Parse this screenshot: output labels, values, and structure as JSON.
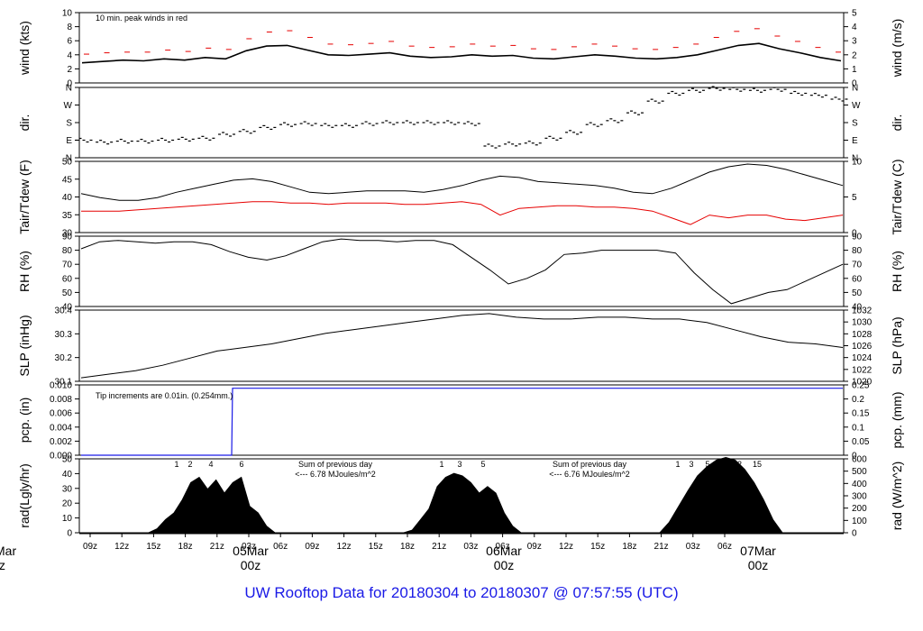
{
  "page_title": "UW Rooftop Data for 20180304  to  20180307 @ 07:57:55  (UTC)",
  "colors": {
    "wind_peak": "#e60000",
    "dewpoint": "#e60000",
    "precip": "#1a1ae6",
    "annot": "#9933cc",
    "day_marker": "#e60000",
    "title": "#1a1ae6",
    "trace": "#000000"
  },
  "x_axis": {
    "ticks": [
      "09z",
      "12z",
      "15z",
      "18z",
      "21z",
      "03z",
      "06z",
      "09z",
      "12z",
      "15z",
      "18z",
      "21z",
      "03z",
      "06z",
      "09z",
      "12z",
      "15z",
      "18z",
      "21z",
      "03z",
      "06z"
    ],
    "day_markers": [
      {
        "label": "05Mar",
        "sub": "00z"
      },
      {
        "label": "06Mar",
        "sub": "00z"
      },
      {
        "label": "07Mar",
        "sub": "00z"
      }
    ],
    "clipped_marker": {
      "label": "Mar",
      "sub": "z"
    }
  },
  "chart_data": [
    {
      "type": "line",
      "id": "wind",
      "ylabel": "wind (kts)",
      "ylabel_right": "wind (m/s)",
      "yticks": [
        "0",
        "2",
        "4",
        "6",
        "8",
        "10"
      ],
      "yticks_right": [
        "0",
        "1",
        "2",
        "3",
        "4",
        "5"
      ],
      "ylim": [
        0,
        10.5
      ],
      "annotation": "10 min. peak winds in red",
      "series": [
        {
          "values": [
            3.0,
            3.2,
            3.4,
            3.3,
            3.6,
            3.4,
            3.8,
            3.6,
            4.8,
            5.5,
            5.6,
            4.9,
            4.2,
            4.1,
            4.3,
            4.5,
            4.0,
            3.8,
            3.9,
            4.2,
            4.0,
            4.1,
            3.7,
            3.6,
            3.9,
            4.2,
            4.0,
            3.7,
            3.6,
            3.8,
            4.2,
            4.9,
            5.6,
            5.9,
            5.1,
            4.5,
            3.8,
            3.3
          ]
        },
        {
          "values": [
            4.3,
            4.5,
            4.6,
            4.6,
            4.9,
            4.7,
            5.2,
            5.0,
            6.6,
            7.6,
            7.8,
            6.8,
            5.8,
            5.7,
            5.9,
            6.2,
            5.5,
            5.3,
            5.4,
            5.8,
            5.5,
            5.6,
            5.1,
            5.0,
            5.4,
            5.8,
            5.5,
            5.1,
            5.0,
            5.3,
            5.8,
            6.8,
            7.7,
            8.1,
            7.0,
            6.2,
            5.3,
            4.6
          ]
        }
      ]
    },
    {
      "type": "scatter",
      "id": "dir",
      "ylabel": "dir.",
      "ylabel_right": "dir.",
      "yticks": [
        "N",
        "E",
        "S",
        "W",
        "N"
      ],
      "yticks_right": [
        "N",
        "E",
        "S",
        "W",
        "N"
      ],
      "ylim": [
        0,
        360
      ],
      "series": [
        {
          "values": [
            90,
            80,
            85,
            85,
            90,
            95,
            100,
            120,
            135,
            155,
            170,
            175,
            165,
            165,
            175,
            180,
            180,
            180,
            180,
            175,
            60,
            70,
            75,
            100,
            130,
            170,
            190,
            230,
            290,
            330,
            345,
            355,
            350,
            345,
            350,
            330,
            320,
            300
          ]
        }
      ]
    },
    {
      "type": "line",
      "id": "temp",
      "ylabel": "Tair/Tdew (F)",
      "ylabel_right": "Tair/Tdew (C)",
      "yticks": [
        "30",
        "35",
        "40",
        "45",
        "50"
      ],
      "yticks_right": [
        "0",
        "5",
        "10"
      ],
      "ylim": [
        26.5,
        53
      ],
      "series": [
        {
          "values": [
            41,
            39.5,
            38.5,
            38.5,
            39.5,
            41.5,
            43,
            44.5,
            46,
            46.5,
            45.5,
            43.5,
            41.5,
            41,
            41.5,
            42,
            42,
            42,
            41.5,
            42.5,
            44,
            46,
            47.5,
            47,
            45.5,
            45,
            44.5,
            44,
            43,
            41.5,
            41,
            43,
            46,
            49,
            51,
            52,
            51.5,
            50,
            48,
            46,
            44
          ]
        },
        {
          "values": [
            34.5,
            34.5,
            34.5,
            35,
            35.5,
            36,
            36.5,
            37,
            37.5,
            38,
            38,
            37.5,
            37.5,
            37,
            37.5,
            37.5,
            37.5,
            37,
            37,
            37.5,
            38,
            37,
            33,
            35.5,
            36,
            36.5,
            36.5,
            36,
            36,
            35.5,
            34.5,
            32,
            29.5,
            33,
            32,
            33,
            33,
            31.5,
            31,
            32,
            33
          ]
        }
      ]
    },
    {
      "type": "line",
      "id": "rh",
      "ylabel": "RH (%)",
      "ylabel_right": "RH (%)",
      "yticks": [
        "40",
        "50",
        "60",
        "70",
        "80",
        "90"
      ],
      "yticks_right": [
        "40",
        "50",
        "60",
        "70",
        "80",
        "90"
      ],
      "ylim": [
        40,
        90
      ],
      "series": [
        {
          "values": [
            81,
            86,
            87,
            86,
            85,
            86,
            86,
            84,
            79,
            75,
            73,
            76,
            81,
            86,
            88,
            87,
            87,
            86,
            87,
            87,
            84,
            75,
            66,
            56,
            60,
            66,
            77,
            78,
            80,
            80,
            80,
            80,
            78,
            64,
            52,
            42,
            46,
            50,
            52,
            58,
            64,
            70
          ]
        }
      ]
    },
    {
      "type": "line",
      "id": "slp",
      "ylabel": "SLP (inHg)",
      "ylabel_right": "SLP (hPa)",
      "yticks": [
        "30.1",
        "30.2",
        "30.3",
        "30.4"
      ],
      "yticks_right": [
        "1020",
        "1022",
        "1024",
        "1026",
        "1028",
        "1030",
        "1032"
      ],
      "ylim": [
        30.07,
        30.47
      ],
      "series": [
        {
          "values": [
            30.09,
            30.11,
            30.13,
            30.16,
            30.2,
            30.24,
            30.26,
            30.28,
            30.31,
            30.34,
            30.36,
            30.38,
            30.4,
            30.42,
            30.44,
            30.45,
            30.43,
            30.42,
            30.42,
            30.43,
            30.43,
            30.42,
            30.42,
            30.4,
            30.36,
            30.32,
            30.29,
            30.28,
            30.26
          ]
        }
      ]
    },
    {
      "type": "line",
      "id": "pcp",
      "ylabel": "pcp. (in)",
      "ylabel_right": "pcp. (mm)",
      "yticks": [
        "0.000",
        "0.002",
        "0.004",
        "0.006",
        "0.008",
        "0.010"
      ],
      "yticks_right": [
        "0",
        "0.05",
        "0.1",
        "0.15",
        "0.2",
        "0.25"
      ],
      "ylim": [
        0,
        0.0105
      ],
      "annotation": "Tip increments are 0.01in. (0.254mm.)",
      "series": [
        {
          "values": [
            0,
            0,
            0,
            0.01,
            0.01
          ]
        }
      ]
    },
    {
      "type": "area",
      "id": "rad",
      "ylabel": "rad(Lgly/hr)",
      "ylabel_right": "rad (W/m^2)",
      "yticks": [
        "0",
        "10",
        "20",
        "30",
        "40",
        "50"
      ],
      "yticks_right": [
        "0",
        "100",
        "200",
        "300",
        "400",
        "500",
        "600"
      ],
      "ylim": [
        0,
        56
      ],
      "annotations": [
        {
          "line1": "Sum of previous day",
          "line2": "<--- 6.78 MJoules/m^2"
        },
        {
          "line1": "Sum of previous day",
          "line2": "<--- 6.76 MJoules/m^2"
        }
      ],
      "hour_labels": [
        [
          "1",
          "2",
          "4",
          "6"
        ],
        [
          "1",
          "3",
          "5"
        ],
        [
          "1",
          "3",
          "5",
          "9",
          "12",
          "15"
        ]
      ],
      "series": [
        {
          "values": [
            0,
            3,
            10,
            15,
            25,
            38,
            42,
            33,
            40,
            30,
            38,
            42,
            20,
            15,
            5,
            0
          ]
        },
        {
          "values": [
            0,
            2,
            10,
            18,
            35,
            42,
            45,
            43,
            38,
            30,
            35,
            30,
            15,
            5,
            0
          ]
        },
        {
          "values": [
            0,
            8,
            20,
            32,
            43,
            50,
            55,
            57,
            55,
            48,
            38,
            25,
            10,
            0
          ]
        }
      ]
    }
  ]
}
